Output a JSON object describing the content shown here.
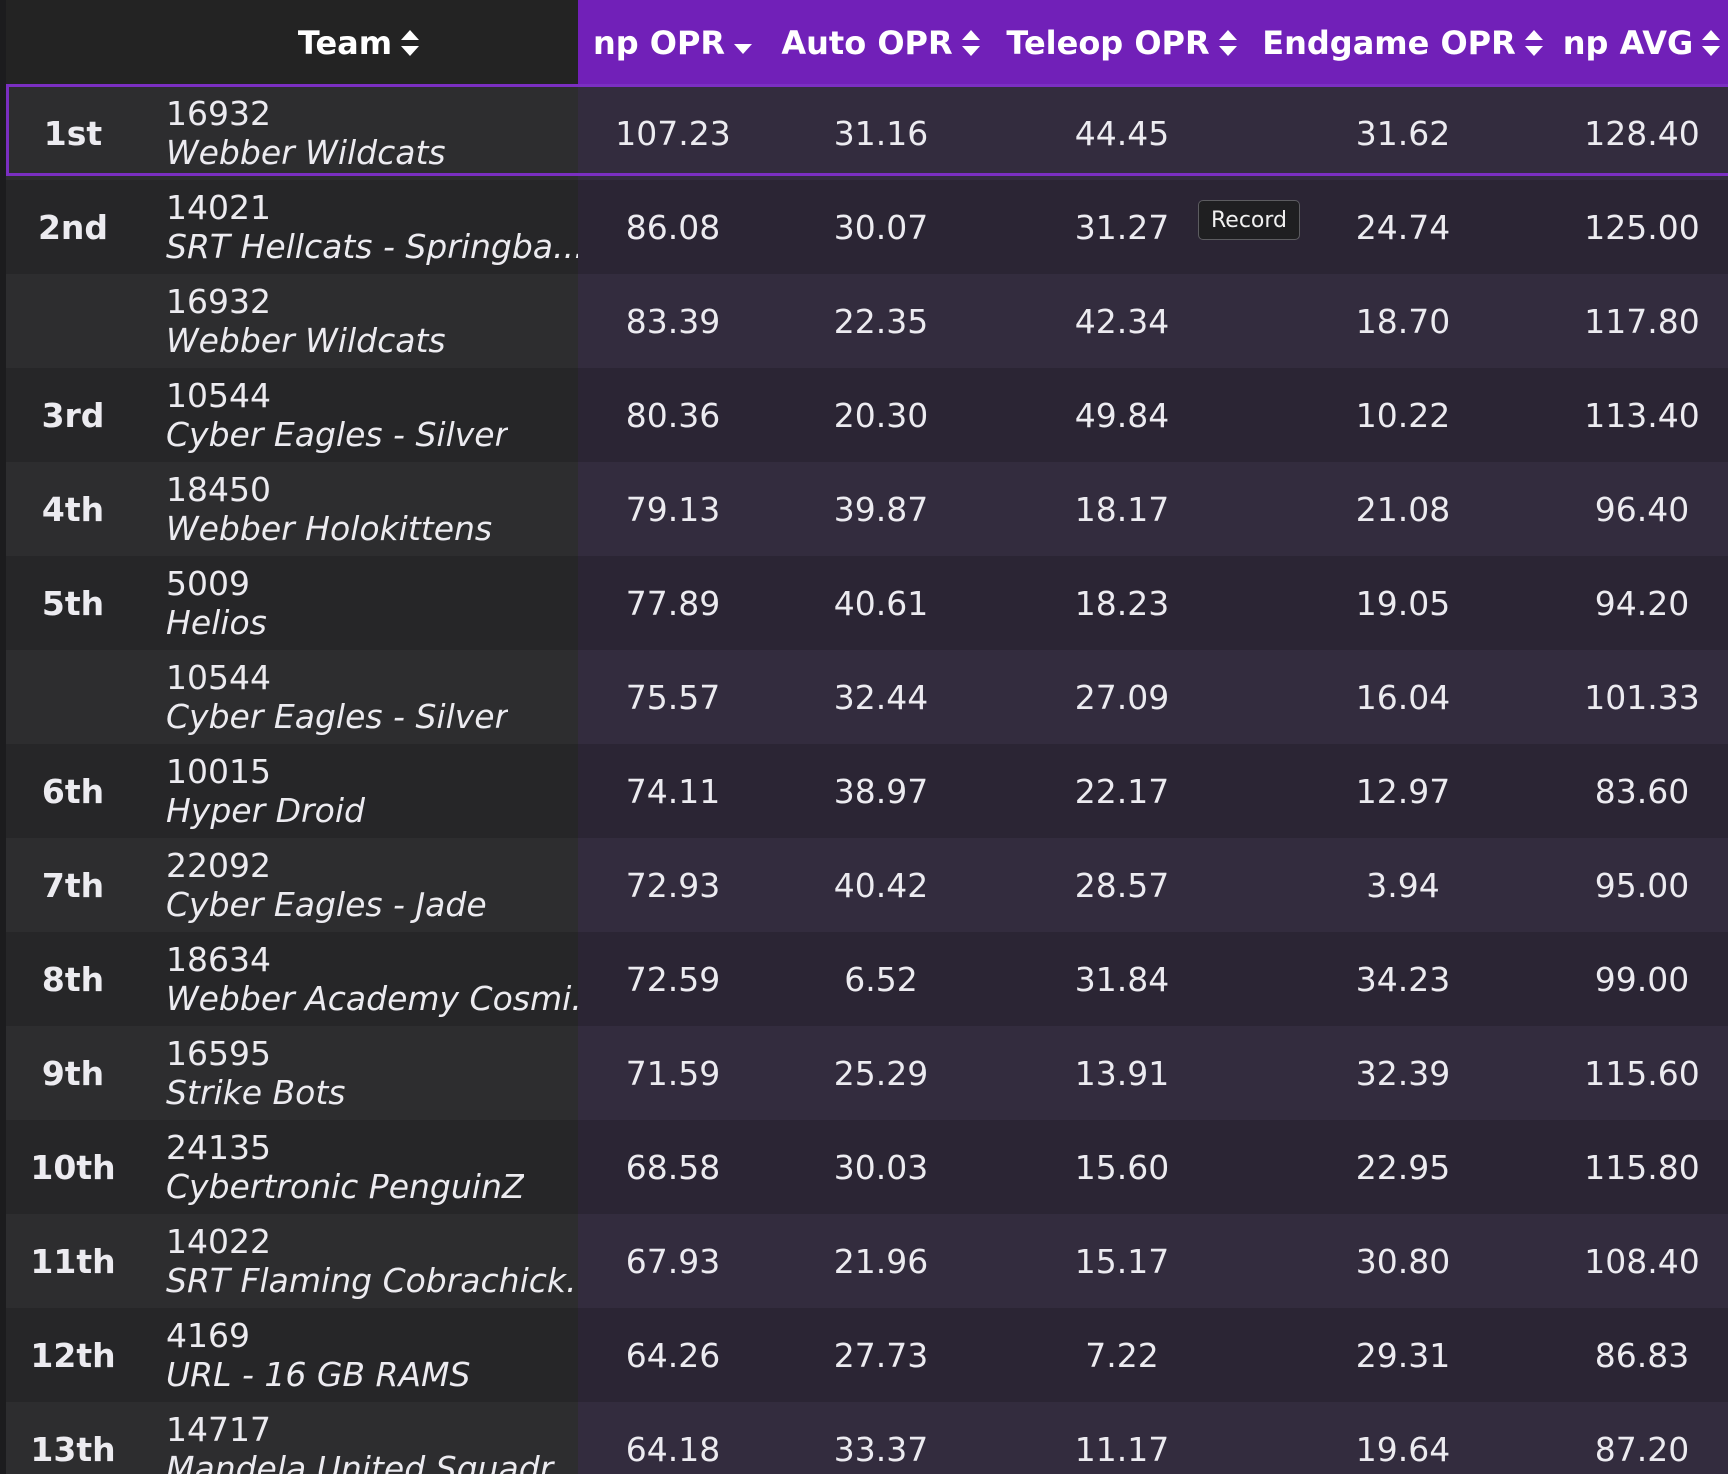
{
  "header": {
    "team": "Team",
    "np_opr": "np OPR",
    "auto_opr": "Auto OPR",
    "teleop_opr": "Teleop OPR",
    "endgame_opr": "Endgame OPR",
    "np_avg": "np AVG"
  },
  "tooltip": "Record",
  "colors": {
    "accent": "#7120b8",
    "outline": "#7b2fc2"
  },
  "rows": [
    {
      "rank": "1st",
      "num": "16932",
      "name": "Webber Wildcats",
      "np": "107.23",
      "auto": "31.16",
      "tele": "44.45",
      "end": "31.62",
      "avg": "128.40"
    },
    {
      "rank": "2nd",
      "num": "14021",
      "name": "SRT Hellcats - Springba...",
      "np": "86.08",
      "auto": "30.07",
      "tele": "31.27",
      "end": "24.74",
      "avg": "125.00"
    },
    {
      "rank": "",
      "num": "16932",
      "name": "Webber Wildcats",
      "np": "83.39",
      "auto": "22.35",
      "tele": "42.34",
      "end": "18.70",
      "avg": "117.80"
    },
    {
      "rank": "3rd",
      "num": "10544",
      "name": "Cyber Eagles - Silver",
      "np": "80.36",
      "auto": "20.30",
      "tele": "49.84",
      "end": "10.22",
      "avg": "113.40"
    },
    {
      "rank": "4th",
      "num": "18450",
      "name": "Webber Holokittens",
      "np": "79.13",
      "auto": "39.87",
      "tele": "18.17",
      "end": "21.08",
      "avg": "96.40"
    },
    {
      "rank": "5th",
      "num": "5009",
      "name": "Helios",
      "np": "77.89",
      "auto": "40.61",
      "tele": "18.23",
      "end": "19.05",
      "avg": "94.20"
    },
    {
      "rank": "",
      "num": "10544",
      "name": "Cyber Eagles - Silver",
      "np": "75.57",
      "auto": "32.44",
      "tele": "27.09",
      "end": "16.04",
      "avg": "101.33"
    },
    {
      "rank": "6th",
      "num": "10015",
      "name": "Hyper Droid",
      "np": "74.11",
      "auto": "38.97",
      "tele": "22.17",
      "end": "12.97",
      "avg": "83.60"
    },
    {
      "rank": "7th",
      "num": "22092",
      "name": "Cyber Eagles - Jade",
      "np": "72.93",
      "auto": "40.42",
      "tele": "28.57",
      "end": "3.94",
      "avg": "95.00"
    },
    {
      "rank": "8th",
      "num": "18634",
      "name": "Webber Academy Cosmi...",
      "np": "72.59",
      "auto": "6.52",
      "tele": "31.84",
      "end": "34.23",
      "avg": "99.00"
    },
    {
      "rank": "9th",
      "num": "16595",
      "name": "Strike Bots",
      "np": "71.59",
      "auto": "25.29",
      "tele": "13.91",
      "end": "32.39",
      "avg": "115.60"
    },
    {
      "rank": "10th",
      "num": "24135",
      "name": "Cybertronic PenguinZ",
      "np": "68.58",
      "auto": "30.03",
      "tele": "15.60",
      "end": "22.95",
      "avg": "115.80"
    },
    {
      "rank": "11th",
      "num": "14022",
      "name": "SRT Flaming Cobrachick...",
      "np": "67.93",
      "auto": "21.96",
      "tele": "15.17",
      "end": "30.80",
      "avg": "108.40"
    },
    {
      "rank": "12th",
      "num": "4169",
      "name": "URL - 16 GB RAMS",
      "np": "64.26",
      "auto": "27.73",
      "tele": "7.22",
      "end": "29.31",
      "avg": "86.83"
    },
    {
      "rank": "13th",
      "num": "14717",
      "name": "Mandela United Squadr...",
      "np": "64.18",
      "auto": "33.37",
      "tele": "11.17",
      "end": "19.64",
      "avg": "87.20"
    }
  ]
}
